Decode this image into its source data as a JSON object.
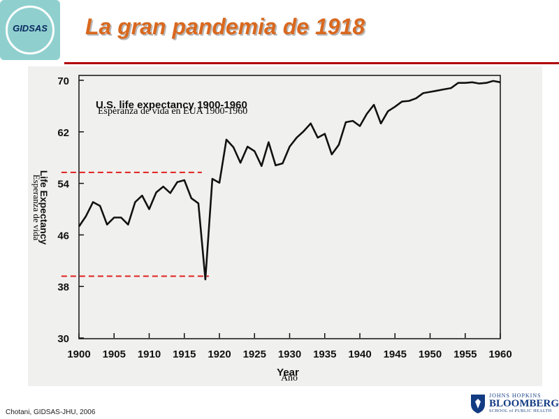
{
  "header": {
    "logo_text": "GIDSAS",
    "title": "La gran pandemia de 1918"
  },
  "chart_data": {
    "type": "line",
    "title": "U.S. life expectancy 1900-1960",
    "title_overlay": "Esperanza de vida en EUA 1900-1960",
    "xlabel": "Year",
    "xlabel_overlay": "Año",
    "ylabel": "Life Expectancy",
    "ylabel_overlay": "Esperanza de vida",
    "xlim": [
      1900,
      1960
    ],
    "ylim": [
      30,
      70
    ],
    "x_ticks": [
      "1900",
      "1905",
      "1910",
      "1915",
      "1920",
      "1925",
      "1930",
      "1935",
      "1940",
      "1945",
      "1950",
      "1955",
      "1960"
    ],
    "y_ticks": [
      "30",
      "38",
      "46",
      "54",
      "62",
      "70"
    ],
    "grid": false,
    "reference_lines": [
      {
        "label": "",
        "y": 55.7,
        "x_range": [
          1897.5,
          1917.5
        ]
      },
      {
        "label": "",
        "y": 39.6,
        "x_range": [
          1897.5,
          1918.5
        ]
      }
    ],
    "series": [
      {
        "name": "",
        "x": [
          1900,
          1901,
          1902,
          1903,
          1904,
          1905,
          1906,
          1907,
          1908,
          1909,
          1910,
          1911,
          1912,
          1913,
          1914,
          1915,
          1916,
          1917,
          1918,
          1919,
          1920,
          1921,
          1922,
          1923,
          1924,
          1925,
          1926,
          1927,
          1928,
          1929,
          1930,
          1931,
          1932,
          1933,
          1934,
          1935,
          1936,
          1937,
          1938,
          1939,
          1940,
          1941,
          1942,
          1943,
          1944,
          1945,
          1946,
          1947,
          1948,
          1949,
          1950,
          1951,
          1952,
          1953,
          1954,
          1955,
          1956,
          1957,
          1958,
          1959,
          1960
        ],
        "y": [
          47.3,
          48.9,
          51.1,
          50.5,
          47.6,
          48.7,
          48.7,
          47.6,
          51.1,
          52.1,
          50.0,
          52.6,
          53.5,
          52.5,
          54.2,
          54.5,
          51.7,
          50.9,
          39.1,
          54.7,
          54.1,
          60.8,
          59.6,
          57.2,
          59.7,
          59.0,
          56.7,
          60.4,
          56.8,
          57.1,
          59.7,
          61.1,
          62.1,
          63.3,
          61.1,
          61.7,
          58.5,
          60.0,
          63.5,
          63.7,
          62.9,
          64.8,
          66.2,
          63.3,
          65.2,
          65.9,
          66.7,
          66.8,
          67.2,
          68.0,
          68.2,
          68.4,
          68.6,
          68.8,
          69.6,
          69.6,
          69.7,
          69.5,
          69.6,
          69.9,
          69.7
        ]
      }
    ]
  },
  "footer": {
    "credit": "Chotani, GIDSAS-JHU, 2006",
    "org_line1": "JOHNS HOPKINS",
    "org_line2": "BLOOMBERG",
    "org_line3": "SCHOOL of PUBLIC HEALTH"
  },
  "colors": {
    "title": "#d9681e",
    "rule": "#b00000",
    "reference_lines": "#e02020",
    "logo_bg": "#8fd0cf",
    "line": "#111111"
  }
}
